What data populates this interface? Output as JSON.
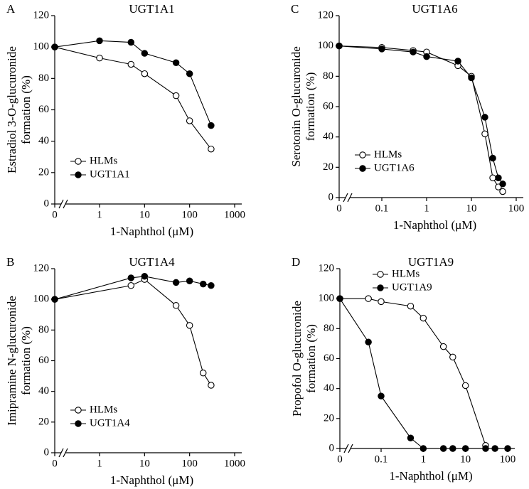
{
  "chart_data": [
    {
      "type": "line",
      "panel_label": "A",
      "title": "UGT1A1",
      "xlabel": "1-Naphthol (μM)",
      "ylabel": [
        "Estradiol 3-O-glucuronide",
        "formation (%)"
      ],
      "xscale": "log",
      "axis_break": true,
      "xlim": [
        0,
        1000
      ],
      "xticks": [
        0,
        1,
        10,
        100,
        1000
      ],
      "ylim": [
        0,
        120
      ],
      "yticks": [
        0,
        20,
        40,
        60,
        80,
        100,
        120
      ],
      "legend": "lower left",
      "series": [
        {
          "name": "HLMs",
          "color": "#000000",
          "marker_fill": "#ffffff",
          "x": [
            0,
            1,
            5,
            10,
            50,
            100,
            300
          ],
          "values": [
            100,
            93,
            89,
            83,
            69,
            53,
            35
          ]
        },
        {
          "name": "UGT1A1",
          "color": "#000000",
          "marker_fill": "#000000",
          "x": [
            0,
            1,
            5,
            10,
            50,
            100,
            300
          ],
          "values": [
            100,
            104,
            103,
            96,
            90,
            83,
            50
          ]
        }
      ]
    },
    {
      "type": "line",
      "panel_label": "B",
      "title": "UGT1A4",
      "xlabel": "1-Naphthol (μM)",
      "ylabel": [
        "Imipramine N-glucuronide",
        "formation (%)"
      ],
      "xscale": "log",
      "axis_break": true,
      "xlim": [
        0,
        1000
      ],
      "xticks": [
        0,
        1,
        10,
        100,
        1000
      ],
      "ylim": [
        0,
        120
      ],
      "yticks": [
        0,
        20,
        40,
        60,
        80,
        100,
        120
      ],
      "legend": "lower left",
      "series": [
        {
          "name": "HLMs",
          "color": "#000000",
          "marker_fill": "#ffffff",
          "x": [
            0,
            5,
            10,
            50,
            100,
            200,
            300
          ],
          "values": [
            100,
            109,
            113,
            96,
            83,
            52,
            44
          ]
        },
        {
          "name": "UGT1A4",
          "color": "#000000",
          "marker_fill": "#000000",
          "x": [
            0,
            5,
            10,
            50,
            100,
            200,
            300
          ],
          "values": [
            100,
            114,
            115,
            111,
            112,
            110,
            109
          ]
        }
      ]
    },
    {
      "type": "line",
      "panel_label": "C",
      "title": "UGT1A6",
      "xlabel": "1-Naphthol (μM)",
      "ylabel": [
        "Serotonin O-glucuronide",
        "formation (%)"
      ],
      "xscale": "log",
      "axis_break": true,
      "xlim": [
        0,
        100
      ],
      "xticks": [
        0,
        0.1,
        1,
        10,
        100
      ],
      "ylim": [
        0,
        120
      ],
      "yticks": [
        0,
        20,
        40,
        60,
        80,
        100,
        120
      ],
      "legend": "lower left",
      "series": [
        {
          "name": "HLMs",
          "color": "#000000",
          "marker_fill": "#ffffff",
          "x": [
            0,
            0.1,
            0.5,
            1,
            5,
            10,
            20,
            30,
            40,
            50
          ],
          "values": [
            100,
            99,
            97,
            96,
            87,
            80,
            42,
            13,
            7,
            4
          ]
        },
        {
          "name": "UGT1A6",
          "color": "#000000",
          "marker_fill": "#000000",
          "x": [
            0,
            0.1,
            0.5,
            1,
            5,
            10,
            20,
            30,
            40,
            50
          ],
          "values": [
            100,
            98,
            96,
            93,
            90,
            79,
            53,
            26,
            13,
            9
          ]
        }
      ]
    },
    {
      "type": "line",
      "panel_label": "D",
      "title": "UGT1A9",
      "xlabel": "1-Naphthol (μM)",
      "ylabel": [
        "Propofol O-glucuronide",
        "formation (%)"
      ],
      "xscale": "log",
      "axis_break": true,
      "xlim": [
        0,
        100
      ],
      "xticks": [
        0,
        0.1,
        1,
        10,
        100
      ],
      "ylim": [
        0,
        120
      ],
      "yticks": [
        0,
        20,
        40,
        60,
        80,
        100,
        120
      ],
      "legend": "upper right",
      "series": [
        {
          "name": "HLMs",
          "color": "#000000",
          "marker_fill": "#ffffff",
          "x": [
            0,
            0.05,
            0.1,
            0.5,
            1,
            3,
            5,
            10,
            30
          ],
          "values": [
            100,
            100,
            98,
            95,
            87,
            68,
            61,
            42,
            2
          ]
        },
        {
          "name": "UGT1A9",
          "color": "#000000",
          "marker_fill": "#000000",
          "x": [
            0,
            0.05,
            0.1,
            0.5,
            1,
            3,
            5,
            10,
            30,
            50,
            100
          ],
          "values": [
            100,
            71,
            35,
            7,
            0,
            0,
            0,
            0,
            0,
            0,
            0
          ]
        }
      ]
    }
  ]
}
